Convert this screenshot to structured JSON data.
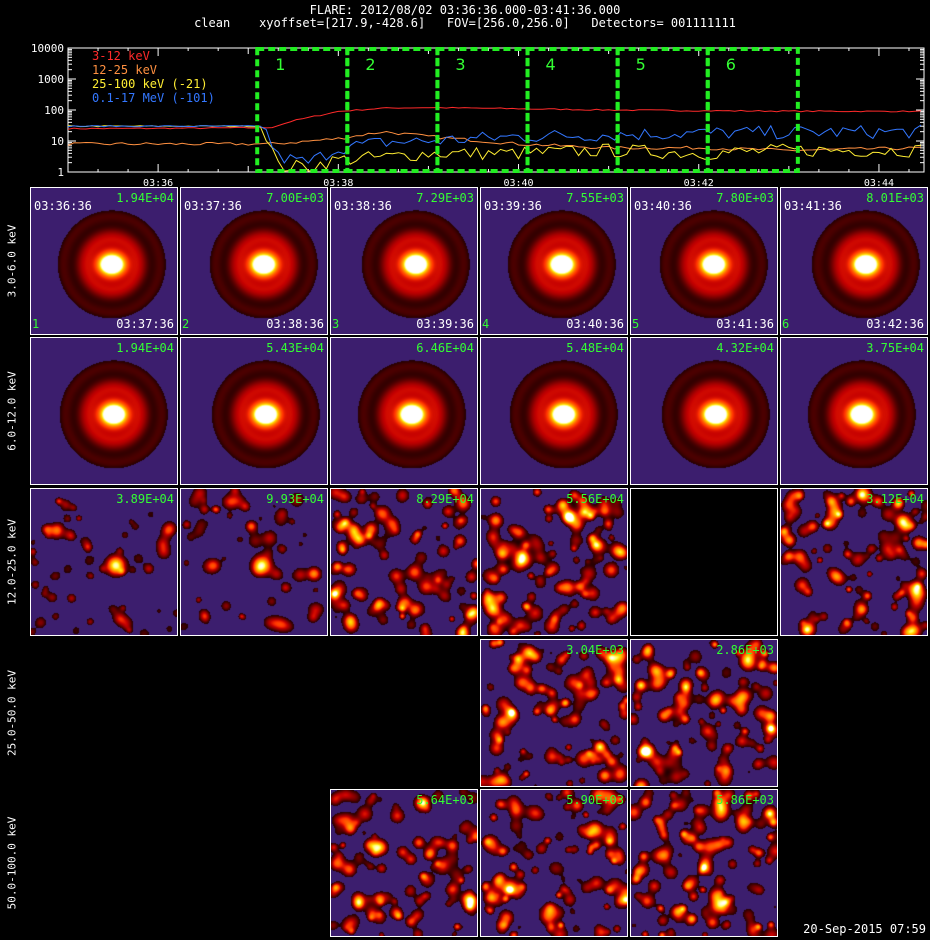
{
  "header": {
    "line1": "FLARE: 2012/08/02 03:36:36.000-03:41:36.000",
    "line2": "clean    xyoffset=[217.9,-428.6]   FOV=[256.0,256.0]   Detectors= 001111111"
  },
  "chart_data": [
    {
      "type": "line",
      "title": "",
      "yscale": "log",
      "ylim": [
        1,
        10000
      ],
      "y_ticks": [
        "1",
        "10",
        "100",
        "1000",
        "10000"
      ],
      "xlim": [
        "03:35:00",
        "03:44:30"
      ],
      "x_ticks": [
        "03:36",
        "03:38",
        "03:40",
        "03:42",
        "03:44"
      ],
      "legend_position": "top-left",
      "series": [
        {
          "name": "3-12 keV",
          "color": "#ff2a2a",
          "x": [
            "03:35:00",
            "03:36:30",
            "03:37:15",
            "03:37:30",
            "03:38:00",
            "03:38:30",
            "03:39:00",
            "03:40:00",
            "03:41:00",
            "03:42:00",
            "03:43:00",
            "03:44:30"
          ],
          "values": [
            25,
            26,
            27,
            45,
            90,
            115,
            120,
            110,
            100,
            95,
            92,
            90
          ]
        },
        {
          "name": "12-25 keV",
          "color": "#ff9040",
          "x": [
            "03:35:00",
            "03:36:30",
            "03:37:15",
            "03:37:30",
            "03:38:00",
            "03:38:30",
            "03:39:00",
            "03:40:00",
            "03:41:00",
            "03:42:00",
            "03:43:00",
            "03:44:30"
          ],
          "values": [
            8,
            8,
            8,
            9,
            12,
            20,
            14,
            8,
            6,
            6,
            5,
            6
          ]
        },
        {
          "name": "25-100 keV (-21)",
          "color": "#ffee33",
          "x": [
            "03:35:00",
            "03:36:30",
            "03:37:10",
            "03:37:20",
            "03:37:40",
            "03:38:00",
            "03:38:30",
            "03:39:00",
            "03:40:00",
            "03:41:00",
            "03:42:00",
            "03:43:00",
            "03:44:30"
          ],
          "values": [
            30,
            30,
            30,
            1.5,
            1.5,
            2.5,
            3,
            4,
            4,
            5,
            4,
            5,
            5
          ]
        },
        {
          "name": "0.1-17 MeV (-101)",
          "color": "#3377ff",
          "x": [
            "03:35:00",
            "03:36:30",
            "03:37:10",
            "03:37:20",
            "03:37:40",
            "03:38:00",
            "03:38:30",
            "03:39:00",
            "03:40:00",
            "03:41:00",
            "03:42:00",
            "03:43:00",
            "03:44:30"
          ],
          "values": [
            30,
            30,
            30,
            3,
            2,
            6,
            9,
            10,
            14,
            16,
            18,
            19,
            20
          ]
        }
      ],
      "annotations": [
        {
          "label": "1",
          "x_start": "03:37:06",
          "x_end": "03:38:06"
        },
        {
          "label": "2",
          "x_start": "03:38:06",
          "x_end": "03:39:06"
        },
        {
          "label": "3",
          "x_start": "03:39:06",
          "x_end": "03:40:06"
        },
        {
          "label": "4",
          "x_start": "03:40:06",
          "x_end": "03:41:06"
        },
        {
          "label": "5",
          "x_start": "03:41:06",
          "x_end": "03:42:06"
        },
        {
          "label": "6",
          "x_start": "03:42:06",
          "x_end": "03:43:06"
        }
      ]
    },
    {
      "type": "heatmap",
      "rows": [
        {
          "label": "3.0-6.0 keV",
          "panels": [
            {
              "col": 0,
              "peak": "1.94E+04",
              "start": "03:36:36",
              "end": "03:37:36",
              "index": "1",
              "style": "smooth"
            },
            {
              "col": 1,
              "peak": "7.00E+03",
              "start": "03:37:36",
              "end": "03:38:36",
              "index": "2",
              "style": "smooth"
            },
            {
              "col": 2,
              "peak": "7.29E+03",
              "start": "03:38:36",
              "end": "03:39:36",
              "index": "3",
              "style": "smooth"
            },
            {
              "col": 3,
              "peak": "7.55E+03",
              "start": "03:39:36",
              "end": "03:40:36",
              "index": "4",
              "style": "smooth"
            },
            {
              "col": 4,
              "peak": "7.80E+03",
              "start": "03:40:36",
              "end": "03:41:36",
              "index": "5",
              "style": "smooth"
            },
            {
              "col": 5,
              "peak": "8.01E+03",
              "start": "03:41:36",
              "end": "03:42:36",
              "index": "6",
              "style": "smooth"
            }
          ]
        },
        {
          "label": "6.0-12.0 keV",
          "panels": [
            {
              "col": 0,
              "peak": "1.94E+04",
              "style": "smooth"
            },
            {
              "col": 1,
              "peak": "5.43E+04",
              "style": "smooth"
            },
            {
              "col": 2,
              "peak": "6.46E+04",
              "style": "smooth"
            },
            {
              "col": 3,
              "peak": "5.48E+04",
              "style": "smooth"
            },
            {
              "col": 4,
              "peak": "4.32E+04",
              "style": "smooth"
            },
            {
              "col": 5,
              "peak": "3.75E+04",
              "style": "smooth"
            }
          ]
        },
        {
          "label": "12.0-25.0 keV",
          "panels": [
            {
              "col": 0,
              "peak": "3.89E+04",
              "style": "mottled"
            },
            {
              "col": 1,
              "peak": "9.93E+04",
              "style": "mottled"
            },
            {
              "col": 2,
              "peak": "8.29E+04",
              "style": "noise"
            },
            {
              "col": 3,
              "peak": "5.56E+04",
              "style": "noise"
            },
            {
              "col": 4,
              "peak": "",
              "style": "empty"
            },
            {
              "col": 5,
              "peak": "3.12E+04",
              "style": "noise"
            }
          ]
        },
        {
          "label": "25.0-50.0 keV",
          "panels": [
            {
              "col": 3,
              "peak": "3.04E+03",
              "style": "noise"
            },
            {
              "col": 4,
              "peak": "2.86E+03",
              "style": "noise"
            }
          ]
        },
        {
          "label": "50.0-100.0 keV",
          "panels": [
            {
              "col": 2,
              "peak": "5.64E+03",
              "style": "noise"
            },
            {
              "col": 3,
              "peak": "5.90E+03",
              "style": "noise"
            },
            {
              "col": 4,
              "peak": "5.86E+03",
              "style": "noise"
            }
          ]
        }
      ]
    }
  ],
  "footer": {
    "date": "20-Sep-2015 07:59"
  }
}
